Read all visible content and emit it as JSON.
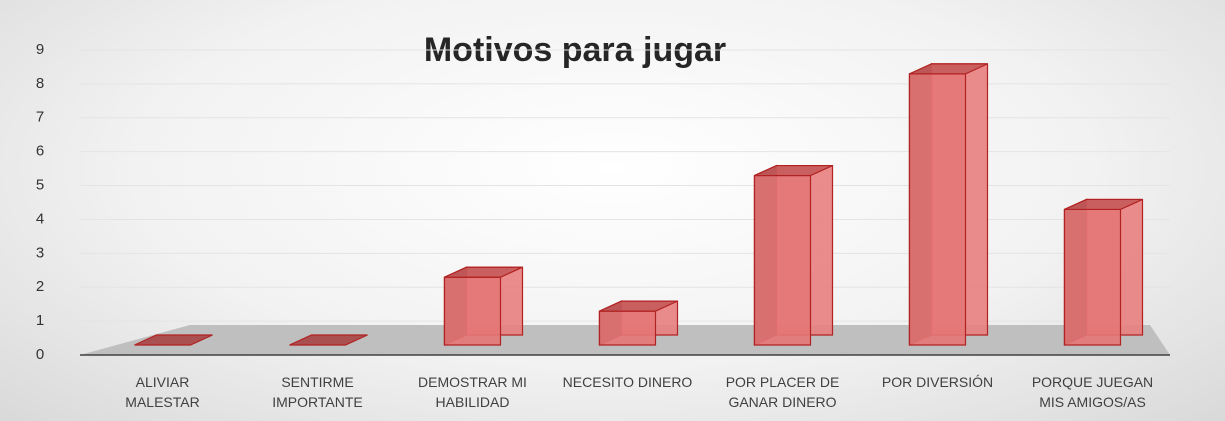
{
  "chart_data": {
    "type": "bar3d",
    "title": "Motivos para jugar",
    "categories": [
      "ALIVIAR\nMALESTAR",
      "SENTIRME\nIMPORTANTE",
      "DEMOSTRAR MI\nHABILIDAD",
      "NECESITO DINERO",
      "POR PLACER DE\nGANAR DINERO",
      "POR DIVERSIÓN",
      "PORQUE JUEGAN\nMIS AMIGOS/AS"
    ],
    "values": [
      0,
      0,
      2,
      1,
      5,
      8,
      4
    ],
    "color": "#e06666",
    "ylim": [
      0,
      9
    ],
    "yticks": [
      0,
      1,
      2,
      3,
      4,
      5,
      6,
      7,
      8,
      9
    ],
    "grid": true
  }
}
